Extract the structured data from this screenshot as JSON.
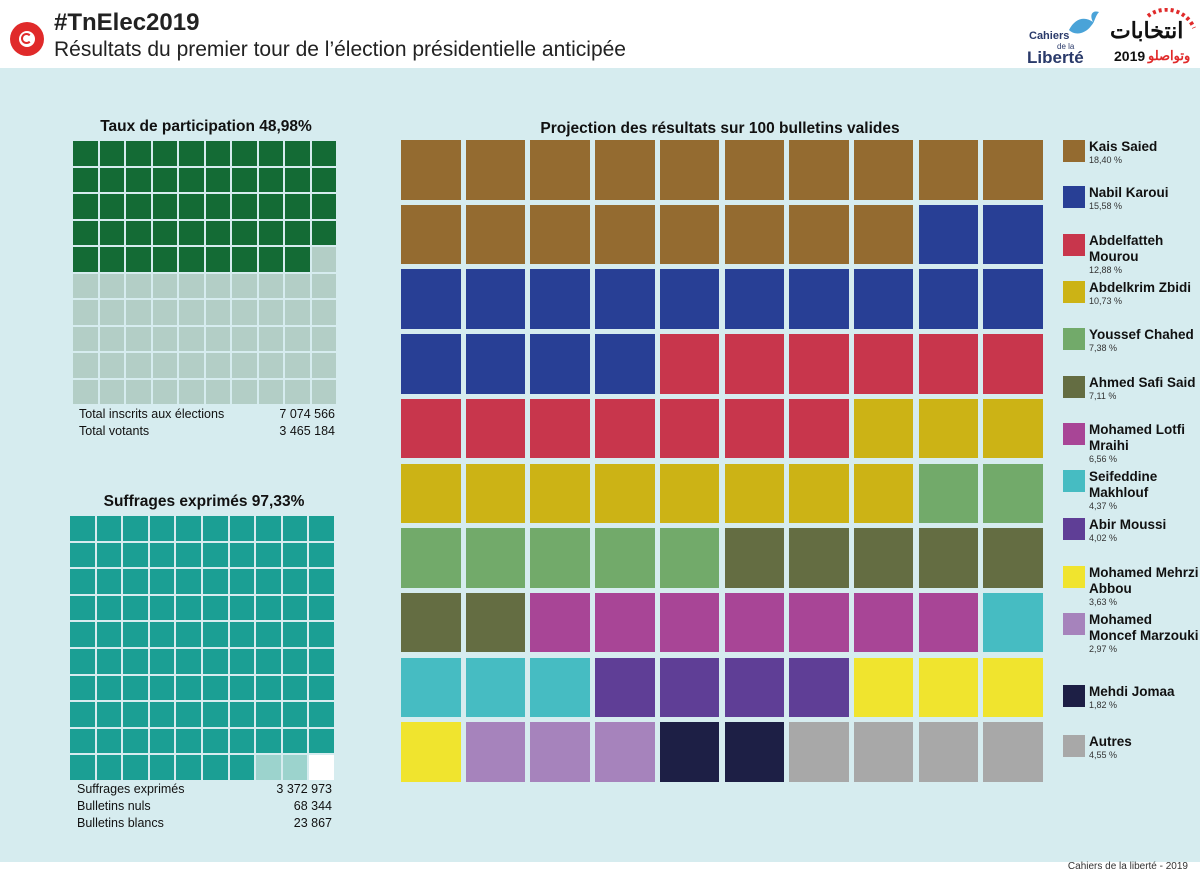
{
  "header": {
    "hashtag": "#TnElec2019",
    "title": "Résultats du premier tour de l’élection présidentielle anticipée",
    "logo_left_line1": "Cahiers",
    "logo_left_line2": "de la",
    "logo_left_line3": "Liberté",
    "logo_right_arabic": "انتخابات",
    "logo_right_year": "2019",
    "logo_right_sub": "وتواصلو"
  },
  "colors": {
    "participation_filled": "#146b35",
    "participation_empty": "#b3cec6",
    "exprimes_filled": "#1b9f94",
    "nuls": "#9cd3cd",
    "blancs": "#ffffff",
    "panel_bg": "#d6ecef"
  },
  "chart_data": [
    {
      "type": "waffle",
      "title": "Taux de participation 48,98%",
      "grid": [
        10,
        10
      ],
      "segments": [
        {
          "name": "Votants",
          "cells": 49
        },
        {
          "name": "Abstention",
          "cells": 51
        }
      ],
      "stats": [
        {
          "label": "Total inscrits aux élections",
          "value": "7 074 566"
        },
        {
          "label": "Total votants",
          "value": "3 465 184"
        }
      ]
    },
    {
      "type": "waffle",
      "title": "Suffrages exprimés 97,33%",
      "grid": [
        10,
        10
      ],
      "segments": [
        {
          "name": "Suffrages exprimés",
          "cells": 97
        },
        {
          "name": "Bulletins nuls",
          "cells": 2
        },
        {
          "name": "Bulletins blancs",
          "cells": 1
        }
      ],
      "stats": [
        {
          "label": "Suffrages exprimés",
          "value": "3 372 973"
        },
        {
          "label": "Bulletins nuls",
          "value": "68 344"
        },
        {
          "label": "Bulletins blancs",
          "value": "23 867"
        }
      ]
    },
    {
      "type": "waffle",
      "title": "Projection des résultats sur 100 bulletins valides",
      "grid": [
        10,
        10
      ],
      "candidates": [
        {
          "name": "Kais Saied",
          "pct": "18,40 %",
          "value": 18.4,
          "cells": 18,
          "color": "#946b30"
        },
        {
          "name": "Nabil Karoui",
          "pct": "15,58 %",
          "value": 15.58,
          "cells": 16,
          "color": "#283f95"
        },
        {
          "name": "Abdelfatteh Mourou",
          "pct": "12,88 %",
          "value": 12.88,
          "cells": 13,
          "color": "#c8364c"
        },
        {
          "name": "Abdelkrim Zbidi",
          "pct": "10,73 %",
          "value": 10.73,
          "cells": 11,
          "color": "#ccb315"
        },
        {
          "name": "Youssef Chahed",
          "pct": "7,38 %",
          "value": 7.38,
          "cells": 7,
          "color": "#72aa6a"
        },
        {
          "name": "Ahmed Safi Said",
          "pct": "7,11 %",
          "value": 7.11,
          "cells": 7,
          "color": "#646d42"
        },
        {
          "name": "Mohamed Lotfi Mraihi",
          "pct": "6,56 %",
          "value": 6.56,
          "cells": 7,
          "color": "#a84596"
        },
        {
          "name": "Seifeddine Makhlouf",
          "pct": "4,37 %",
          "value": 4.37,
          "cells": 4,
          "color": "#46bcc2"
        },
        {
          "name": "Abir Moussi",
          "pct": "4,02 %",
          "value": 4.02,
          "cells": 4,
          "color": "#5f3e96"
        },
        {
          "name": "Mohamed Mehrzi Abbou",
          "pct": "3,63 %",
          "value": 3.63,
          "cells": 4,
          "color": "#f0e42e"
        },
        {
          "name": "Mohamed Moncef Marzouki",
          "pct": "2,97 %",
          "value": 2.97,
          "cells": 3,
          "color": "#a683bc"
        },
        {
          "name": "Mehdi Jomaa",
          "pct": "1,82 %",
          "value": 1.82,
          "cells": 2,
          "color": "#1d1f45"
        },
        {
          "name": "Autres",
          "pct": "4,55 %",
          "value": 4.55,
          "cells": 4,
          "color": "#a8a8a8"
        }
      ]
    }
  ],
  "footer": "Cahiers de la liberté - 2019"
}
